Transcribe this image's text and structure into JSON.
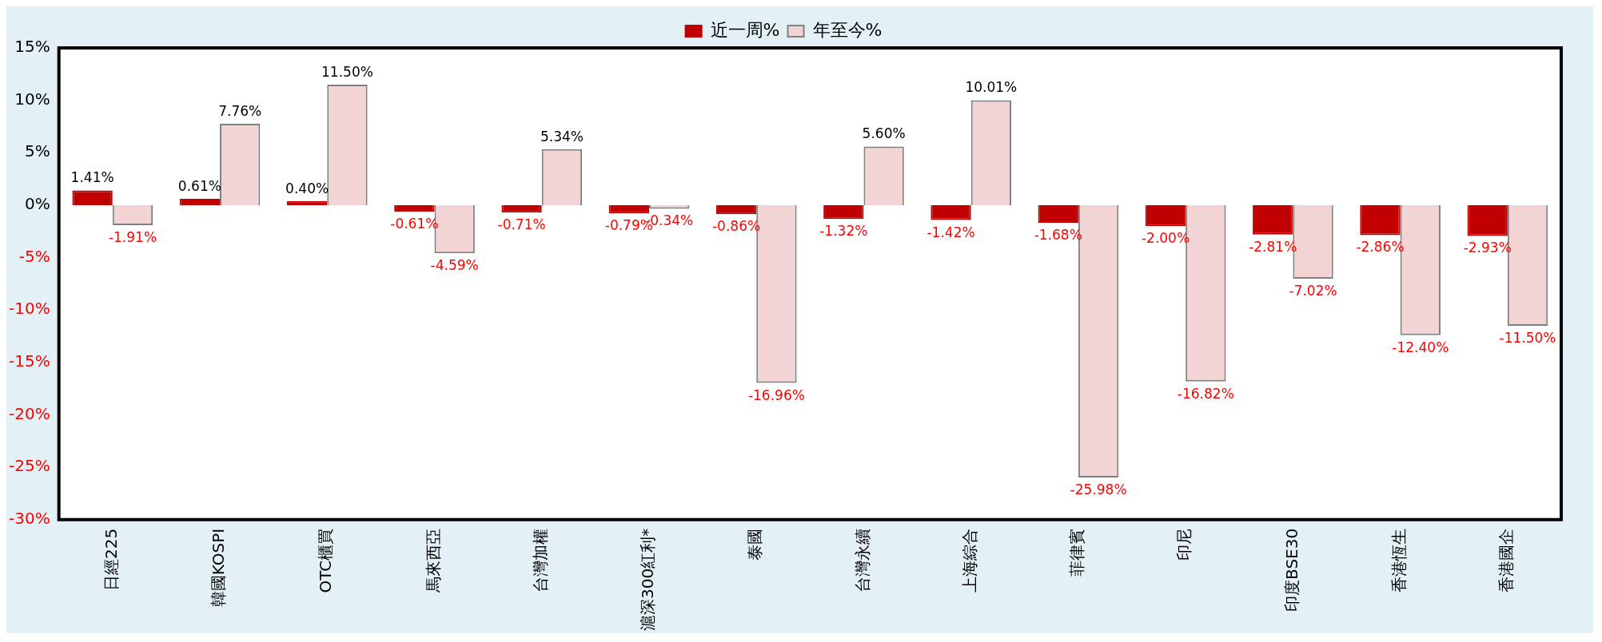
{
  "chart_data": {
    "type": "bar",
    "categories": [
      "日經225",
      "韓國KOSPI",
      "OTC櫃買",
      "馬來西亞",
      "台灣加權",
      "滬深300紅利*",
      "泰國",
      "台灣永續",
      "上海綜合",
      "菲律賓",
      "印尼",
      "印度BSE30",
      "香港恆生",
      "香港國企"
    ],
    "series": [
      {
        "name": "近一周%",
        "color": "#c00000",
        "values": [
          1.41,
          0.61,
          0.4,
          -0.61,
          -0.71,
          -0.79,
          -0.86,
          -1.32,
          -1.42,
          -1.68,
          -2.0,
          -2.81,
          -2.86,
          -2.93
        ],
        "value_labels": [
          "1.41%",
          "0.61%",
          "0.40%",
          "-0.61%",
          "-0.71%",
          "-0.79%",
          "-0.86%",
          "-1.32%",
          "-1.42%",
          "-1.68%",
          "-2.00%",
          "-2.81%",
          "-2.86%",
          "-2.93%"
        ]
      },
      {
        "name": "年至今%",
        "color": "#f2d4d4",
        "values": [
          -1.91,
          7.76,
          11.5,
          -4.59,
          5.34,
          -0.34,
          -16.96,
          5.6,
          10.01,
          -25.98,
          -16.82,
          -7.02,
          -12.4,
          -11.5
        ],
        "value_labels": [
          "-1.91%",
          "7.76%",
          "11.50%",
          "-4.59%",
          "5.34%",
          "-0.34%",
          "-16.96%",
          "5.60%",
          "10.01%",
          "-25.98%",
          "-16.82%",
          "-7.02%",
          "-12.40%",
          "-11.50%"
        ]
      }
    ],
    "ylim": [
      -30,
      15
    ],
    "yticks": [
      {
        "value": -30,
        "label": "-30%"
      },
      {
        "value": -25,
        "label": "-25%"
      },
      {
        "value": -20,
        "label": "-20%"
      },
      {
        "value": -15,
        "label": "-15%"
      },
      {
        "value": -10,
        "label": "-10%"
      },
      {
        "value": -5,
        "label": "-5%"
      },
      {
        "value": 0,
        "label": "0%"
      },
      {
        "value": 5,
        "label": "5%"
      },
      {
        "value": 10,
        "label": "10%"
      },
      {
        "value": 15,
        "label": "15%"
      }
    ],
    "grid": false,
    "legend": "top"
  }
}
